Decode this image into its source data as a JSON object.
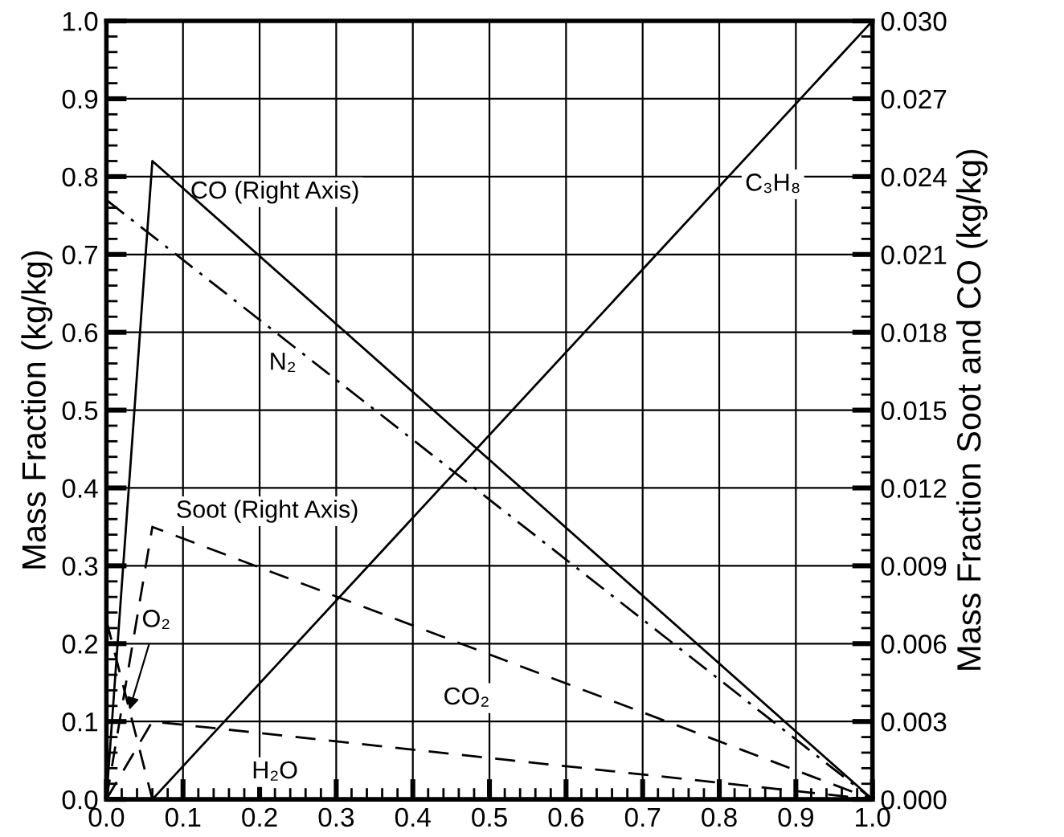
{
  "chart_data": {
    "type": "line",
    "ylabel": "Mass Fraction (kg/kg)",
    "y2label": "Mass Fraction Soot and CO (kg/kg)",
    "series": [
      {
        "color": "#000000",
        "x": [
          0,
          0.06,
          1.0
        ],
        "values": [
          0,
          0.0246,
          0
        ],
        "axis": "y2",
        "line_style": "solid"
      },
      {
        "color": "#000000",
        "x": [
          0,
          1.0
        ],
        "values": [
          0.77,
          0
        ],
        "line_style": "dashdot"
      },
      {
        "color": "#000000",
        "x": [
          0.06,
          1.0
        ],
        "values": [
          0,
          1.0
        ],
        "line_style": "solid"
      },
      {
        "color": "#000000",
        "x": [
          0,
          0.06,
          1.0
        ],
        "values": [
          0,
          0.0105,
          0
        ],
        "axis": "y2",
        "line_style": "dashed"
      },
      {
        "color": "#000000",
        "x": [
          0,
          0.06
        ],
        "values": [
          0.23,
          0
        ],
        "line_style": "dashed"
      },
      {
        "color": "#000000",
        "x": [
          0,
          0.06,
          1.0
        ],
        "values": [
          0,
          0.1,
          0
        ],
        "line_style": "dashed"
      }
    ],
    "annotations": [
      "CO (Right Axis)",
      {
        "text": "N₂",
        "x": 0.23,
        "y": 0.56
      },
      {
        "text": "C₃H₈",
        "x": 0.87,
        "y": 0.79
      },
      "Soot (Right Axis)",
      {
        "text": "O₂",
        "x": 0.03,
        "y": 0.115
      },
      {
        "text": "CO₂",
        "x": 0.47,
        "y": 0.13
      },
      {
        "text": "H₂O",
        "x": 0.22,
        "y": 0.035
      }
    ],
    "xlim": [
      0,
      1.0
    ],
    "ylim": [
      0,
      1.0
    ],
    "y2lim": [
      0,
      0.03
    ],
    "xticks": [
      {
        "value": 0,
        "label": "0.0"
      },
      0.1,
      0.2,
      0.3,
      0.4,
      0.5,
      0.6,
      0.7,
      0.8,
      0.9,
      {
        "value": 1.0,
        "label": "1.0"
      }
    ],
    "yticks": [
      {
        "value": 0,
        "label": "0.0"
      },
      0.1,
      0.2,
      0.3,
      0.4,
      0.5,
      0.6,
      0.7,
      0.8,
      0.9,
      {
        "value": 1.0,
        "label": "1.0"
      }
    ],
    "y2ticks": [
      {
        "value": 0,
        "label": "0.000"
      },
      0.003,
      0.006,
      0.009,
      0.012,
      0.015,
      0.018,
      0.021,
      0.024,
      0.027,
      {
        "value": 0.03,
        "label": "0.030"
      }
    ],
    "grid": true,
    "marker": "none"
  }
}
